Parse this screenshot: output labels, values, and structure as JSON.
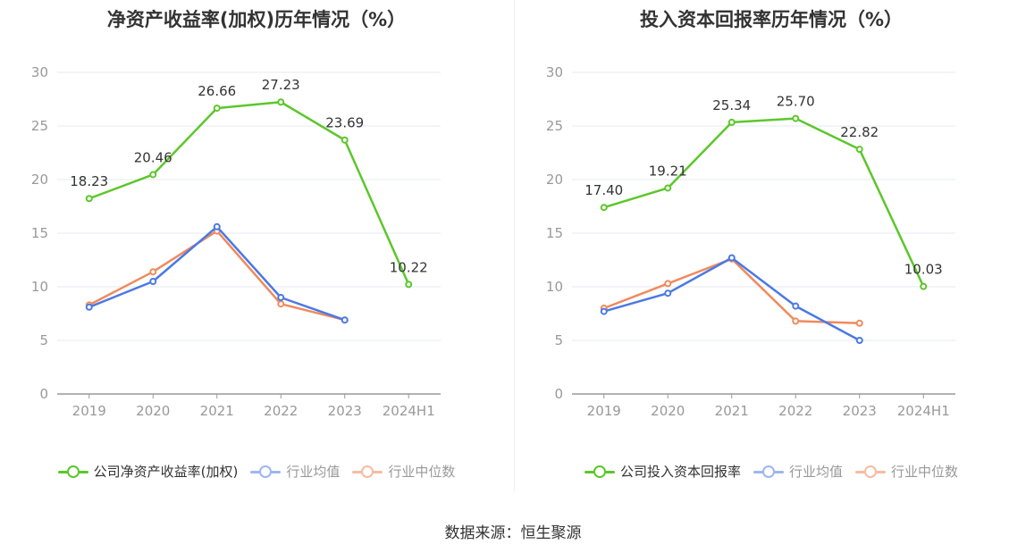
{
  "source_text": "数据来源：恒生聚源",
  "chart_data": [
    {
      "type": "line",
      "title": "净资产收益率(加权)历年情况（%）",
      "categories": [
        "2019",
        "2020",
        "2021",
        "2022",
        "2023",
        "2024H1"
      ],
      "ylim": [
        0,
        30
      ],
      "yticks": [
        0,
        5,
        10,
        15,
        20,
        25,
        30
      ],
      "grid": true,
      "legend_position": "bottom",
      "series": [
        {
          "name": "公司净资产收益率(加权)",
          "color": "#5cc72b",
          "values": [
            18.23,
            20.46,
            26.66,
            27.23,
            23.69,
            10.22
          ],
          "labels": true
        },
        {
          "name": "行业均值",
          "color": "#4b79e4",
          "values": [
            8.1,
            10.5,
            15.6,
            9.0,
            6.9,
            null
          ],
          "labels": false
        },
        {
          "name": "行业中位数",
          "color": "#f08a5d",
          "values": [
            8.3,
            11.4,
            15.2,
            8.4,
            6.9,
            null
          ],
          "labels": false
        }
      ]
    },
    {
      "type": "line",
      "title": "投入资本回报率历年情况（%）",
      "categories": [
        "2019",
        "2020",
        "2021",
        "2022",
        "2023",
        "2024H1"
      ],
      "ylim": [
        0,
        30
      ],
      "yticks": [
        0,
        5,
        10,
        15,
        20,
        25,
        30
      ],
      "grid": true,
      "legend_position": "bottom",
      "series": [
        {
          "name": "公司投入资本回报率",
          "color": "#5cc72b",
          "values": [
            17.4,
            19.21,
            25.34,
            25.7,
            22.82,
            10.03
          ],
          "labels": true
        },
        {
          "name": "行业均值",
          "color": "#4b79e4",
          "values": [
            7.7,
            9.4,
            12.7,
            8.2,
            5.0,
            null
          ],
          "labels": false
        },
        {
          "name": "行业中位数",
          "color": "#f08a5d",
          "values": [
            8.0,
            10.3,
            12.6,
            6.8,
            6.6,
            null
          ],
          "labels": false
        }
      ]
    }
  ]
}
